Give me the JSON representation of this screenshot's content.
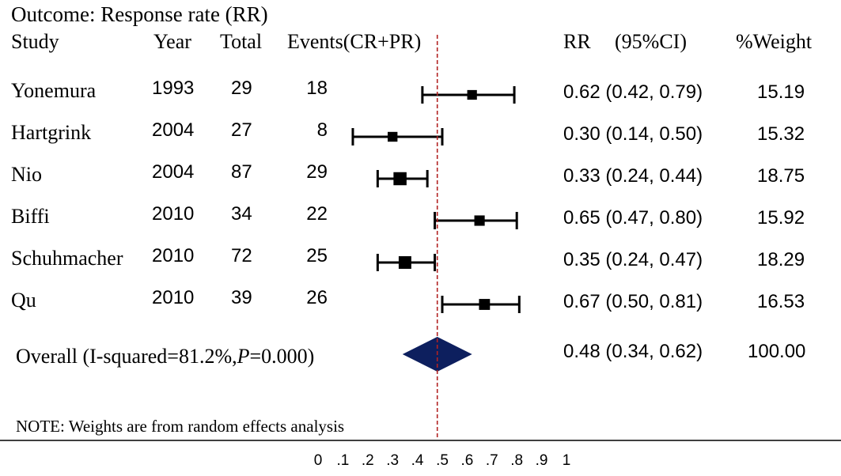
{
  "chart_data": {
    "type": "forest",
    "title": "Outcome: Response rate (RR)",
    "columns": {
      "study": "Study",
      "year": "Year",
      "total": "Total",
      "events": "Events(CR+PR)",
      "rr": "RR",
      "ci": "(95%CI)",
      "weight": "%Weight"
    },
    "studies": [
      {
        "name": "Yonemura",
        "year": "1993",
        "total": "29",
        "events": "18",
        "rr": 0.62,
        "lo": 0.42,
        "hi": 0.79,
        "ci_text": "0.62 (0.42, 0.79)",
        "weight": "15.19"
      },
      {
        "name": "Hartgrink",
        "year": "2004",
        "total": "27",
        "events": "8",
        "rr": 0.3,
        "lo": 0.14,
        "hi": 0.5,
        "ci_text": "0.30 (0.14, 0.50)",
        "weight": "15.32"
      },
      {
        "name": "Nio",
        "year": "2004",
        "total": "87",
        "events": "29",
        "rr": 0.33,
        "lo": 0.24,
        "hi": 0.44,
        "ci_text": "0.33 (0.24, 0.44)",
        "weight": "18.75"
      },
      {
        "name": "Biffi",
        "year": "2010",
        "total": "34",
        "events": "22",
        "rr": 0.65,
        "lo": 0.47,
        "hi": 0.8,
        "ci_text": "0.65 (0.47, 0.80)",
        "weight": "15.92"
      },
      {
        "name": "Schuhmacher",
        "year": "2010",
        "total": "72",
        "events": "25",
        "rr": 0.35,
        "lo": 0.24,
        "hi": 0.47,
        "ci_text": "0.35 (0.24, 0.47)",
        "weight": "18.29"
      },
      {
        "name": "Qu",
        "year": "2010",
        "total": "39",
        "events": "26",
        "rr": 0.67,
        "lo": 0.5,
        "hi": 0.81,
        "ci_text": "0.67 (0.50, 0.81)",
        "weight": "16.53"
      }
    ],
    "overall": {
      "label_prefix": "Overall (I-squared=81.2%,",
      "label_p": "P",
      "label_suffix": "=0.000)",
      "rr": 0.48,
      "lo": 0.34,
      "hi": 0.62,
      "ci_text": "0.48 (0.34, 0.62)",
      "weight": "100.00"
    },
    "note": "NOTE: Weights are from random effects analysis",
    "x_ticks": [
      {
        "v": 0,
        "label": "0"
      },
      {
        "v": 0.1,
        "label": ".1"
      },
      {
        "v": 0.2,
        "label": ".2"
      },
      {
        "v": 0.3,
        "label": ".3"
      },
      {
        "v": 0.4,
        "label": ".4"
      },
      {
        "v": 0.5,
        "label": ".5"
      },
      {
        "v": 0.6,
        "label": ".6"
      },
      {
        "v": 0.7,
        "label": ".7"
      },
      {
        "v": 0.8,
        "label": ".8"
      },
      {
        "v": 0.9,
        "label": ".9"
      },
      {
        "v": 1,
        "label": "1"
      }
    ],
    "xlim": [
      0,
      1
    ],
    "reference_line": 0.48,
    "colors": {
      "diamond": "#0d1f5e",
      "reference": "#b22222",
      "marker": "#000000"
    }
  }
}
